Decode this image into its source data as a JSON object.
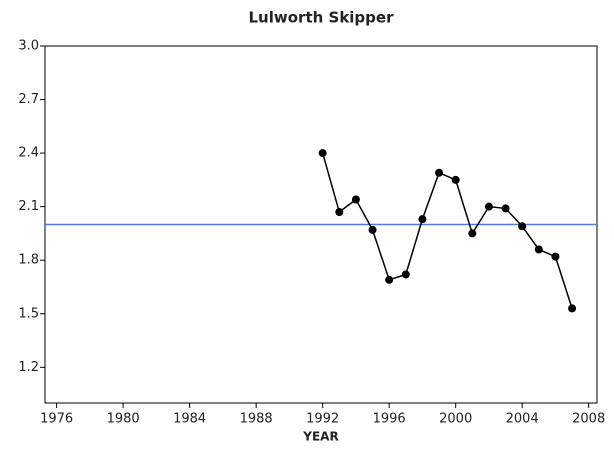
{
  "chart_data": {
    "type": "line",
    "title": "Lulworth Skipper",
    "x_label": "YEAR",
    "x": [
      1992,
      1993,
      1994,
      1995,
      1996,
      1997,
      1998,
      1999,
      2000,
      2001,
      2002,
      2003,
      2004,
      2005,
      2006,
      2007
    ],
    "series": [
      {
        "color": "#000000",
        "values": [
          2.4,
          2.07,
          2.14,
          1.97,
          1.69,
          1.72,
          2.03,
          2.29,
          2.25,
          1.95,
          2.1,
          2.09,
          1.99,
          1.86,
          1.82,
          1.53
        ]
      }
    ],
    "reference_line": {
      "value": 2.0,
      "color": "#4a7fd4"
    },
    "xlim": [
      1975.3,
      2008.5
    ],
    "xticks": [
      1976,
      1980,
      1984,
      1988,
      1992,
      1996,
      2000,
      2004,
      2008
    ],
    "ylim": [
      1.0,
      3.0
    ],
    "yticks": [
      1.2,
      1.5,
      1.8,
      2.1,
      2.4,
      2.7,
      {
        "value": 3,
        "label": "3.0"
      }
    ],
    "grid": false
  }
}
